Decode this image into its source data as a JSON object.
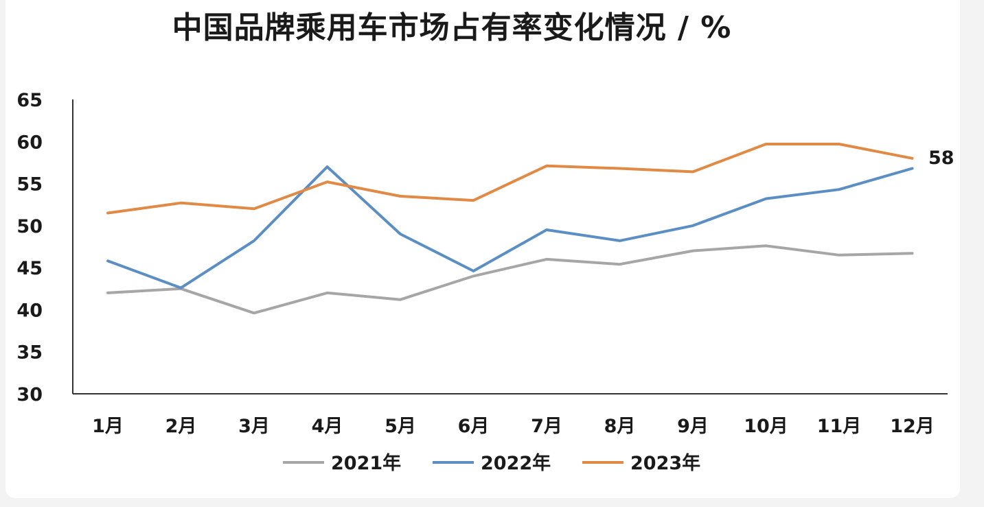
{
  "chart_data": {
    "type": "line",
    "title": "中国品牌乘用车市场占有率变化情况 / %",
    "categories": [
      "1月",
      "2月",
      "3月",
      "4月",
      "5月",
      "6月",
      "7月",
      "8月",
      "9月",
      "10月",
      "11月",
      "12月"
    ],
    "ylim": [
      30,
      65
    ],
    "yticks": [
      "30",
      "35",
      "40",
      "45",
      "50",
      "55",
      "60",
      "65"
    ],
    "grid": false,
    "legend_position": "bottom",
    "series": [
      {
        "name": "2021年",
        "color": "#a6a6a6",
        "values": [
          42.0,
          42.5,
          39.6,
          42.0,
          41.2,
          44.0,
          46.0,
          45.4,
          47.0,
          47.6,
          46.5,
          46.7
        ]
      },
      {
        "name": "2022年",
        "color": "#5b8ec2",
        "values": [
          45.8,
          42.6,
          48.2,
          57.0,
          49.0,
          44.6,
          49.5,
          48.2,
          50.0,
          53.2,
          54.3,
          56.8
        ]
      },
      {
        "name": "2023年",
        "color": "#e08a45",
        "values": [
          51.5,
          52.7,
          52.0,
          55.2,
          53.5,
          53.0,
          57.1,
          56.8,
          56.4,
          59.7,
          59.7,
          58.0
        ]
      }
    ],
    "annotation": "58"
  }
}
